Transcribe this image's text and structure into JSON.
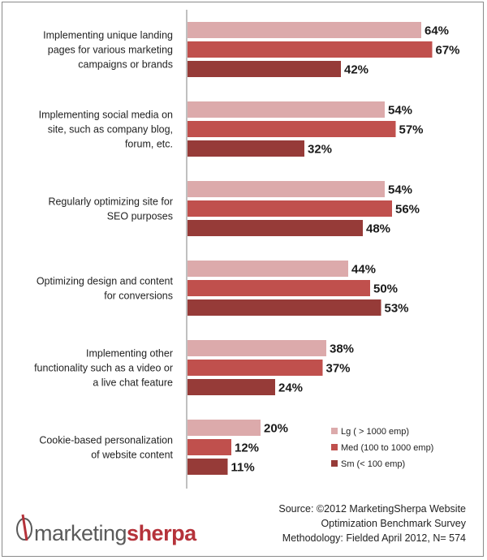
{
  "chart_data": {
    "type": "bar",
    "orientation": "horizontal",
    "categories": [
      [
        "Implementing unique landing",
        "pages for various marketing",
        "campaigns or brands"
      ],
      [
        "Implementing social media on",
        "site, such as company blog,",
        "forum, etc."
      ],
      [
        "Regularly optimizing site for",
        "SEO purposes"
      ],
      [
        "Optimizing design and content",
        "for conversions"
      ],
      [
        "Implementing other",
        "functionality such as a video or",
        "a live chat feature"
      ],
      [
        "Cookie-based personalization",
        "of website content"
      ]
    ],
    "series": [
      {
        "name": "Lg ( > 1000 emp)",
        "color": "#dcaaab",
        "values": [
          64,
          54,
          54,
          44,
          38,
          20
        ]
      },
      {
        "name": "Med (100 to 1000 emp)",
        "color": "#c0504d",
        "values": [
          67,
          57,
          56,
          50,
          37,
          12
        ]
      },
      {
        "name": "Sm (< 100 emp)",
        "color": "#963b38",
        "values": [
          42,
          32,
          48,
          53,
          24,
          11
        ]
      }
    ],
    "value_suffix": "%",
    "xlim": [
      0,
      100
    ],
    "legend_position": "bottom-right",
    "grid": false
  },
  "footer": {
    "logo_part1": "marketing",
    "logo_part2": "sherpa",
    "source_lines": [
      "Source: ©2012 MarketingSherpa Website",
      "Optimization Benchmark Survey",
      "Methodology: Fielded April 2012, N= 574"
    ]
  }
}
